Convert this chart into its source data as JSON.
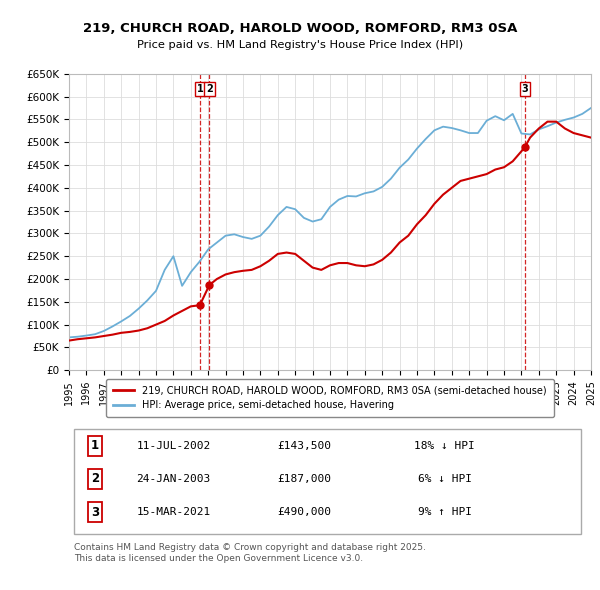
{
  "title_line1": "219, CHURCH ROAD, HAROLD WOOD, ROMFORD, RM3 0SA",
  "title_line2": "Price paid vs. HM Land Registry's House Price Index (HPI)",
  "ylim": [
    0,
    650000
  ],
  "yticks": [
    0,
    50000,
    100000,
    150000,
    200000,
    250000,
    300000,
    350000,
    400000,
    450000,
    500000,
    550000,
    600000,
    650000
  ],
  "xmin_year": 1995,
  "xmax_year": 2025,
  "xticks": [
    1995,
    1996,
    1997,
    1998,
    1999,
    2000,
    2001,
    2002,
    2003,
    2004,
    2005,
    2006,
    2007,
    2008,
    2009,
    2010,
    2011,
    2012,
    2013,
    2014,
    2015,
    2016,
    2017,
    2018,
    2019,
    2020,
    2021,
    2022,
    2023,
    2024,
    2025
  ],
  "hpi_color": "#6baed6",
  "price_color": "#cc0000",
  "dashed_color": "#cc0000",
  "legend_label_red": "219, CHURCH ROAD, HAROLD WOOD, ROMFORD, RM3 0SA (semi-detached house)",
  "legend_label_blue": "HPI: Average price, semi-detached house, Havering",
  "sale_points": [
    {
      "num": 1,
      "year": 2002.53,
      "price": 143500
    },
    {
      "num": 2,
      "year": 2003.07,
      "price": 187000
    },
    {
      "num": 3,
      "year": 2021.21,
      "price": 490000
    }
  ],
  "table_rows": [
    {
      "num": 1,
      "date": "11-JUL-2002",
      "price": "£143,500",
      "pct": "18% ↓ HPI"
    },
    {
      "num": 2,
      "date": "24-JAN-2003",
      "price": "£187,000",
      "pct": "6% ↓ HPI"
    },
    {
      "num": 3,
      "date": "15-MAR-2021",
      "price": "£490,000",
      "pct": "9% ↑ HPI"
    }
  ],
  "footer": "Contains HM Land Registry data © Crown copyright and database right 2025.\nThis data is licensed under the Open Government Licence v3.0.",
  "bg_color": "#ffffff",
  "grid_color": "#dddddd",
  "hpi_data_x": [
    1995.0,
    1995.5,
    1996.0,
    1996.5,
    1997.0,
    1997.5,
    1998.0,
    1998.5,
    1999.0,
    1999.5,
    2000.0,
    2000.5,
    2001.0,
    2001.5,
    2002.0,
    2002.5,
    2003.0,
    2003.5,
    2004.0,
    2004.5,
    2005.0,
    2005.5,
    2006.0,
    2006.5,
    2007.0,
    2007.5,
    2008.0,
    2008.5,
    2009.0,
    2009.5,
    2010.0,
    2010.5,
    2011.0,
    2011.5,
    2012.0,
    2012.5,
    2013.0,
    2013.5,
    2014.0,
    2014.5,
    2015.0,
    2015.5,
    2016.0,
    2016.5,
    2017.0,
    2017.5,
    2018.0,
    2018.5,
    2019.0,
    2019.5,
    2020.0,
    2020.5,
    2021.0,
    2021.5,
    2022.0,
    2022.5,
    2023.0,
    2023.5,
    2024.0,
    2024.5,
    2025.0
  ],
  "hpi_data_y": [
    72000,
    73500,
    76000,
    79000,
    86000,
    96000,
    107000,
    119000,
    135000,
    153000,
    174000,
    220000,
    250000,
    185000,
    215000,
    238000,
    265000,
    280000,
    295000,
    298000,
    292000,
    288000,
    295000,
    315000,
    340000,
    358000,
    353000,
    334000,
    326000,
    331000,
    358000,
    374000,
    382000,
    381000,
    388000,
    392000,
    402000,
    420000,
    444000,
    462000,
    486000,
    507000,
    526000,
    534000,
    531000,
    526000,
    520000,
    520000,
    547000,
    557000,
    548000,
    562000,
    519000,
    517000,
    528000,
    535000,
    543000,
    549000,
    554000,
    562000,
    575000
  ],
  "price_data_x": [
    1995.0,
    1995.5,
    1996.0,
    1996.5,
    1997.0,
    1997.5,
    1998.0,
    1998.5,
    1999.0,
    1999.5,
    2000.0,
    2000.5,
    2001.0,
    2001.5,
    2002.0,
    2002.4,
    2002.53,
    2003.07,
    2003.5,
    2004.0,
    2004.5,
    2005.0,
    2005.5,
    2006.0,
    2006.5,
    2007.0,
    2007.5,
    2008.0,
    2008.5,
    2009.0,
    2009.5,
    2010.0,
    2010.5,
    2011.0,
    2011.5,
    2012.0,
    2012.5,
    2013.0,
    2013.5,
    2014.0,
    2014.5,
    2015.0,
    2015.5,
    2016.0,
    2016.5,
    2017.0,
    2017.5,
    2018.0,
    2018.5,
    2019.0,
    2019.5,
    2020.0,
    2020.5,
    2021.0,
    2021.21,
    2021.5,
    2022.0,
    2022.5,
    2023.0,
    2023.5,
    2024.0,
    2024.5,
    2025.0
  ],
  "price_data_y": [
    65000,
    68000,
    70000,
    72000,
    75000,
    78000,
    82000,
    84000,
    87000,
    92000,
    100000,
    108000,
    120000,
    130000,
    140000,
    142000,
    143500,
    187000,
    200000,
    210000,
    215000,
    218000,
    220000,
    228000,
    240000,
    255000,
    258000,
    255000,
    240000,
    225000,
    220000,
    230000,
    235000,
    235000,
    230000,
    228000,
    232000,
    242000,
    258000,
    280000,
    295000,
    320000,
    340000,
    365000,
    385000,
    400000,
    415000,
    420000,
    425000,
    430000,
    440000,
    445000,
    458000,
    480000,
    490000,
    510000,
    530000,
    545000,
    545000,
    530000,
    520000,
    515000,
    510000
  ]
}
